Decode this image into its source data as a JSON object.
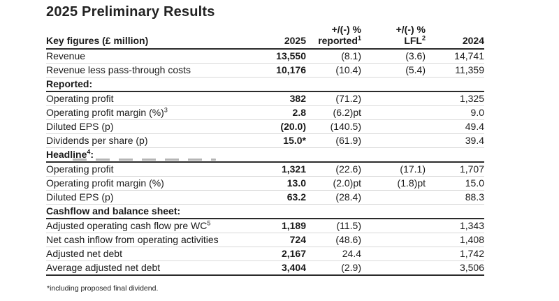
{
  "title": "2025 Preliminary Results",
  "footnote": "*including proposed final dividend.",
  "colors": {
    "background": "#ffffff",
    "text": "#1a1a1a",
    "border_strong": "#2b2b2b",
    "border_light": "#d9d9d9"
  },
  "table": {
    "header": {
      "key_figures": "Key figures (£ million)",
      "col_2025": "2025",
      "col_reported_line1": "+/(-) %",
      "col_reported_line2": "reported",
      "col_reported_sup": "1",
      "col_lfl_line1": "+/(-) %",
      "col_lfl_line2": "LFL",
      "col_lfl_sup": "2",
      "col_2024": "2024"
    },
    "rows": [
      {
        "type": "data",
        "label": "Revenue",
        "sup": "",
        "after": "",
        "v2025": "13,550",
        "reported": "(8.1)",
        "lfl": "(3.6)",
        "v2024": "14,741"
      },
      {
        "type": "data",
        "label": "Revenue less pass-through costs",
        "sup": "",
        "after": "",
        "v2025": "10,176",
        "reported": "(10.4)",
        "lfl": "(5.4)",
        "v2024": "11,359"
      },
      {
        "type": "section",
        "label": "Reported:",
        "sup": "",
        "after": ""
      },
      {
        "type": "data",
        "label": "Operating profit",
        "sup": "",
        "after": "",
        "v2025": "382",
        "reported": "(71.2)",
        "lfl": "",
        "v2024": "1,325"
      },
      {
        "type": "data",
        "label": "Operating profit margin (%)",
        "sup": "3",
        "after": "",
        "v2025": "2.8",
        "reported": "(6.2)pt",
        "lfl": "",
        "v2024": "9.0"
      },
      {
        "type": "data",
        "label": "Diluted EPS (p)",
        "sup": "",
        "after": "",
        "v2025": "(20.0)",
        "reported": "(140.5)",
        "lfl": "",
        "v2024": "49.4"
      },
      {
        "type": "data",
        "label": "Dividends per share (p)",
        "sup": "",
        "after": "",
        "v2025": "15.0*",
        "reported": "(61.9)",
        "lfl": "",
        "v2024": "39.4"
      },
      {
        "type": "section",
        "label": "Headline",
        "sup": "4",
        "after": ":"
      },
      {
        "type": "data",
        "label": "Operating profit",
        "sup": "",
        "after": "",
        "v2025": "1,321",
        "reported": "(22.6)",
        "lfl": "(17.1)",
        "v2024": "1,707"
      },
      {
        "type": "data",
        "label": "Operating profit margin (%)",
        "sup": "",
        "after": "",
        "v2025": "13.0",
        "reported": "(2.0)pt",
        "lfl": "(1.8)pt",
        "v2024": "15.0"
      },
      {
        "type": "data",
        "label": "Diluted EPS (p)",
        "sup": "",
        "after": "",
        "v2025": "63.2",
        "reported": "(28.4)",
        "lfl": "",
        "v2024": "88.3"
      },
      {
        "type": "section",
        "label": "Cashflow and balance sheet:",
        "sup": "",
        "after": ""
      },
      {
        "type": "data",
        "label": "Adjusted operating cash flow pre WC",
        "sup": "5",
        "after": "",
        "v2025": "1,189",
        "reported": "(11.5)",
        "lfl": "",
        "v2024": "1,343"
      },
      {
        "type": "data",
        "label": "Net cash inflow from operating activities",
        "sup": "",
        "after": "",
        "v2025": "724",
        "reported": "(48.6)",
        "lfl": "",
        "v2024": "1,408"
      },
      {
        "type": "data",
        "label": "Adjusted net debt",
        "sup": "",
        "after": "",
        "v2025": "2,167",
        "reported": "24.4",
        "lfl": "",
        "v2024": "1,742"
      },
      {
        "type": "data",
        "label": "Average adjusted net debt",
        "sup": "",
        "after": "",
        "v2025": "3,404",
        "reported": "(2.9)",
        "lfl": "",
        "v2024": "3,506"
      }
    ]
  }
}
